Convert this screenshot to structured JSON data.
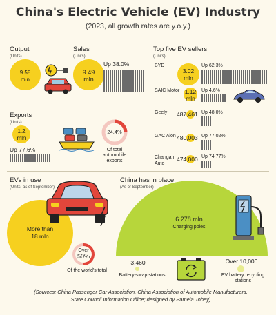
{
  "title": "China's Electric Vehicle (EV) Industry",
  "subtitle": "(2023, all growth rates are y.o.y.)",
  "output": {
    "header": "Output",
    "units": "(Units)",
    "value": "9.58",
    "unit": "mln"
  },
  "sales": {
    "header": "Sales",
    "units": "(Units)",
    "value": "9.49",
    "unit": "mln",
    "growth": "Up 38.0%"
  },
  "exports": {
    "header": "Exports",
    "units": "(Units)",
    "value": "1.2",
    "unit": "mln",
    "growth": "Up 77.6%",
    "share": "24.4%",
    "share_fraction": 0.244,
    "share_label_1": "Of total",
    "share_label_2": "automobile",
    "share_label_3": "exports"
  },
  "top_sellers": {
    "header": "Top five EV sellers",
    "units": "(Units)",
    "items": [
      {
        "name": "BYD",
        "value_1": "3.02",
        "value_2": "mln",
        "growth": "Up 62.3%",
        "bar_fraction": 1.0
      },
      {
        "name": "SAIC Motor",
        "value_1": "1.12",
        "value_2": "mln",
        "growth": "Up 4.6%",
        "bar_fraction": 0.37
      },
      {
        "name": "Geely",
        "value_1": "487,461",
        "growth": "Up 48.0%",
        "bar_fraction": 0.16
      },
      {
        "name": "GAC Aion",
        "value_1": "480,003",
        "growth": "Up 77.02%",
        "bar_fraction": 0.16
      },
      {
        "name": "Changan",
        "name_2": "Auto",
        "value_1": "474,000",
        "growth": "Up 74.77%",
        "bar_fraction": 0.157
      }
    ]
  },
  "evs_in_use": {
    "header": "EVs in use",
    "units": "(Units, as of September)",
    "value_1": "More than",
    "value_2": "18 mln",
    "share_1": "Over",
    "share_2": "50%",
    "share_fraction": 0.5,
    "share_label": "Of the world's total"
  },
  "china_has": {
    "header": "China has in place",
    "units": "(As of September)",
    "charging_value": "6.278 mln",
    "charging_label": "Charging poles",
    "swap_value": "3,460",
    "swap_label": "Battery-swap stations",
    "recycle_value": "Over 10,000",
    "recycle_label_1": "EV battery recycling",
    "recycle_label_2": "stations"
  },
  "source": {
    "line_1": "(Sources: China Passenger Car Association, China Association of Automobile Manufacturers,",
    "line_2": "State Council Information Office; designed by Pamela Tobey)"
  },
  "colors": {
    "accent_yellow": "#f6d01f",
    "light_yellow": "#e8ec8f",
    "green": "#b7d63b",
    "red": "#e2463b",
    "background": "#fdf9ec"
  }
}
